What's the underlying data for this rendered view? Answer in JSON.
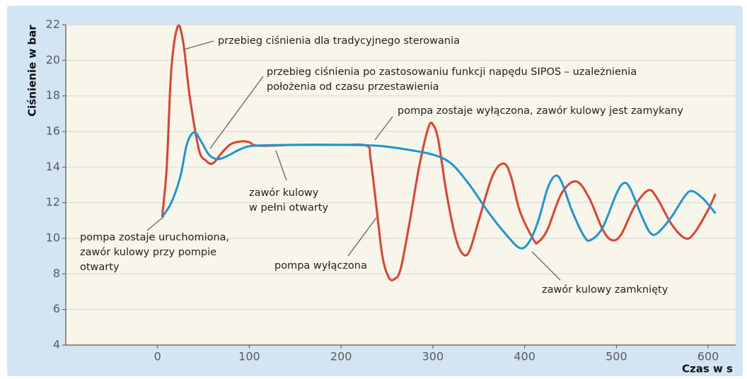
{
  "chart_data": {
    "type": "line",
    "y_label": "Ciśnienie w bar",
    "x_label": "Czas w s",
    "xlim": [
      -100,
      630
    ],
    "ylim": [
      4,
      22
    ],
    "xticks": [
      0,
      100,
      200,
      300,
      400,
      500,
      600
    ],
    "yticks": [
      4,
      6,
      8,
      10,
      12,
      14,
      16,
      18,
      20,
      22
    ],
    "grid": true,
    "series": [
      {
        "name": "przebieg ciśnienia dla tradycyjnego sterowania",
        "color": "#e0412f",
        "x": [
          5,
          10,
          15,
          22,
          28,
          35,
          45,
          52,
          60,
          70,
          80,
          92,
          100,
          110,
          150,
          200,
          228,
          232,
          238,
          245,
          252,
          258,
          265,
          275,
          285,
          295,
          300,
          306,
          315,
          325,
          333,
          340,
          350,
          365,
          377,
          385,
          395,
          410,
          415,
          425,
          440,
          456,
          470,
          485,
          495,
          505,
          520,
          535,
          545,
          560,
          575,
          585,
          600,
          608
        ],
        "values": [
          11.2,
          14,
          19.5,
          21.9,
          21,
          18,
          15,
          14.4,
          14.2,
          14.8,
          15.3,
          15.45,
          15.4,
          15.2,
          15.25,
          15.25,
          15.2,
          14.5,
          12,
          9,
          7.8,
          7.7,
          8.3,
          11,
          14,
          16.2,
          16.4,
          15.5,
          12.5,
          10,
          9.1,
          9.3,
          11,
          13.5,
          14.2,
          13.5,
          11.5,
          9.9,
          9.8,
          10.5,
          12.5,
          13.2,
          12.3,
          10.5,
          9.9,
          10.2,
          11.8,
          12.7,
          12.2,
          10.8,
          10,
          10.3,
          11.6,
          12.5
        ]
      },
      {
        "name": "przebieg ciśnienia po zastosowaniu funkcji napędu SIPOS",
        "color": "#1e96cf",
        "x": [
          5,
          15,
          25,
          32,
          40,
          48,
          56,
          65,
          75,
          90,
          105,
          150,
          200,
          240,
          270,
          300,
          320,
          340,
          360,
          380,
          395,
          405,
          415,
          425,
          433,
          440,
          452,
          465,
          472,
          485,
          500,
          508,
          515,
          528,
          537,
          545,
          560,
          575,
          583,
          595,
          608
        ],
        "values": [
          11.2,
          12,
          13.5,
          15.3,
          15.95,
          15.4,
          14.7,
          14.45,
          14.6,
          15,
          15.2,
          15.25,
          15.25,
          15.2,
          15,
          14.7,
          14.2,
          13,
          11.5,
          10.2,
          9.45,
          9.8,
          11,
          12.8,
          13.5,
          13.2,
          11.5,
          10.1,
          9.9,
          10.6,
          12.5,
          13.1,
          12.8,
          11.2,
          10.3,
          10.3,
          11.2,
          12.4,
          12.65,
          12.2,
          11.4
        ]
      }
    ],
    "annotations": [
      [
        "przebieg ciśnienia dla tradycyjnego sterowania"
      ],
      [
        "przebieg ciśnienia po zastosowaniu funkcji napędu SIPOS – uzależnienia",
        "położenia od czasu przestawienia"
      ],
      [
        "pompa zostaje wyłączona, zawór kulowy jest zamykany"
      ],
      [
        "zawór kulowy",
        "w pełni otwarty"
      ],
      [
        "pompa zostaje uruchomiona,",
        "zawór kulowy przy pompie",
        "otwarty"
      ],
      [
        "pompa wyłączona"
      ],
      [
        "zawór kulowy zamknięty"
      ]
    ]
  }
}
